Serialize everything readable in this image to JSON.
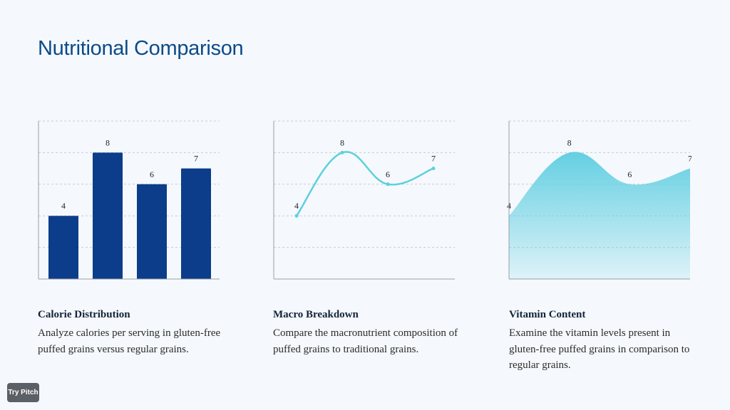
{
  "page": {
    "title": "Nutritional Comparison",
    "badge": "Try Pitch"
  },
  "colors": {
    "bar": "#0b3d8a",
    "line": "#5ed0dc",
    "area_top": "#5ccde0",
    "grid": "#c7cdd3",
    "axis": "#9aa0a6",
    "title": "#0c4a8a"
  },
  "captions": [
    {
      "title": "Calorie Distribution",
      "body": "Analyze calories per serving in gluten-free puffed grains versus regular grains."
    },
    {
      "title": "Macro Breakdown",
      "body": "Compare the macronutrient composition of puffed grains to traditional grains."
    },
    {
      "title": "Vitamin Content",
      "body": "Examine the vitamin levels present in gluten-free puffed grains in comparison to regular grains."
    }
  ],
  "chart_data": [
    {
      "type": "bar",
      "values": [
        4,
        8,
        6,
        7
      ],
      "ylim": [
        0,
        10
      ],
      "grid": true
    },
    {
      "type": "line",
      "values": [
        4,
        8,
        6,
        7
      ],
      "ylim": [
        0,
        10
      ],
      "grid": true
    },
    {
      "type": "area",
      "values": [
        4,
        8,
        6,
        7
      ],
      "ylim": [
        0,
        10
      ],
      "grid": true
    }
  ]
}
